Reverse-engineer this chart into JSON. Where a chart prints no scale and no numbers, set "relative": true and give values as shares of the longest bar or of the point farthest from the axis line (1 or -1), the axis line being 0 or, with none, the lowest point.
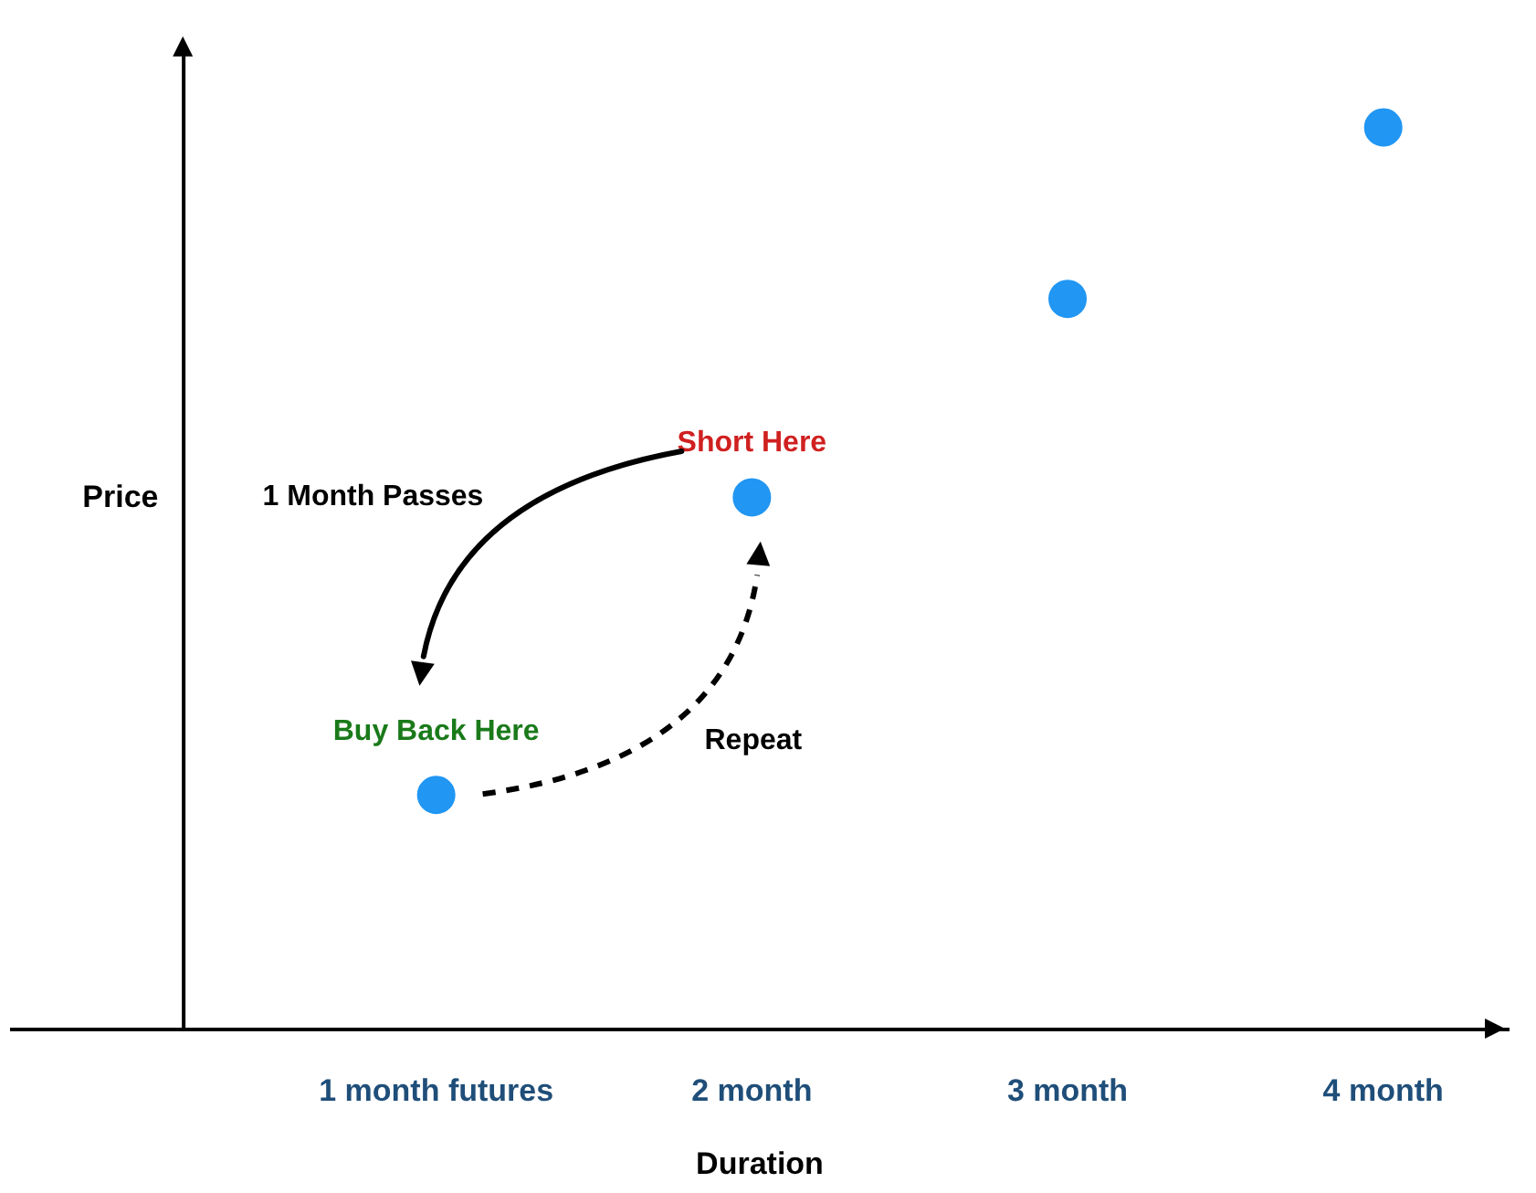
{
  "chart_data": {
    "type": "scatter",
    "relative": true,
    "xlabel": "Duration",
    "ylabel": "Price",
    "categories": [
      "1 month futures",
      "2 month",
      "3 month",
      "4 month"
    ],
    "values": [
      0.26,
      0.59,
      0.81,
      1.0
    ],
    "color": "#2196f3",
    "marker": "circle",
    "grid": false,
    "annotations": [
      "Buy Back Here",
      "Short Here",
      "1 Month Passes",
      "Repeat"
    ]
  }
}
